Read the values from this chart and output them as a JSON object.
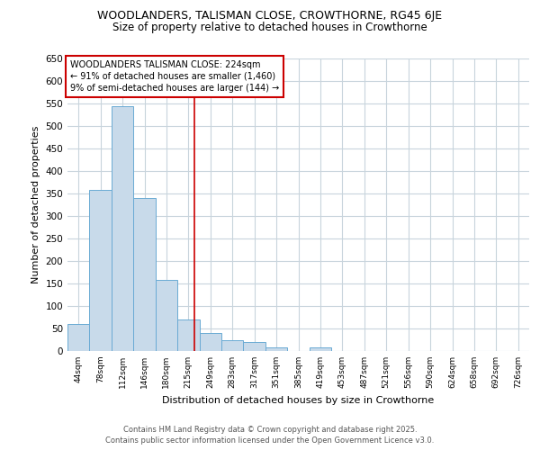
{
  "title1": "WOODLANDERS, TALISMAN CLOSE, CROWTHORNE, RG45 6JE",
  "title2": "Size of property relative to detached houses in Crowthorne",
  "xlabel": "Distribution of detached houses by size in Crowthorne",
  "ylabel": "Number of detached properties",
  "bin_labels": [
    "44sqm",
    "78sqm",
    "112sqm",
    "146sqm",
    "180sqm",
    "215sqm",
    "249sqm",
    "283sqm",
    "317sqm",
    "351sqm",
    "385sqm",
    "419sqm",
    "453sqm",
    "487sqm",
    "521sqm",
    "556sqm",
    "590sqm",
    "624sqm",
    "658sqm",
    "692sqm",
    "726sqm"
  ],
  "bar_heights": [
    60,
    358,
    545,
    340,
    158,
    70,
    40,
    25,
    20,
    8,
    0,
    8,
    0,
    0,
    0,
    0,
    0,
    0,
    0,
    0,
    0
  ],
  "bar_color": "#c8daea",
  "bar_edge_color": "#6aaad4",
  "vline_color": "#cc0000",
  "ylim": [
    0,
    650
  ],
  "yticks": [
    0,
    50,
    100,
    150,
    200,
    250,
    300,
    350,
    400,
    450,
    500,
    550,
    600,
    650
  ],
  "annotation_text": "WOODLANDERS TALISMAN CLOSE: 224sqm\n← 91% of detached houses are smaller (1,460)\n9% of semi-detached houses are larger (144) →",
  "annotation_box_color": "#ffffff",
  "annotation_box_edge": "#cc0000",
  "footer1": "Contains HM Land Registry data © Crown copyright and database right 2025.",
  "footer2": "Contains public sector information licensed under the Open Government Licence v3.0.",
  "background_color": "#ffffff",
  "grid_color": "#c8d4dc"
}
